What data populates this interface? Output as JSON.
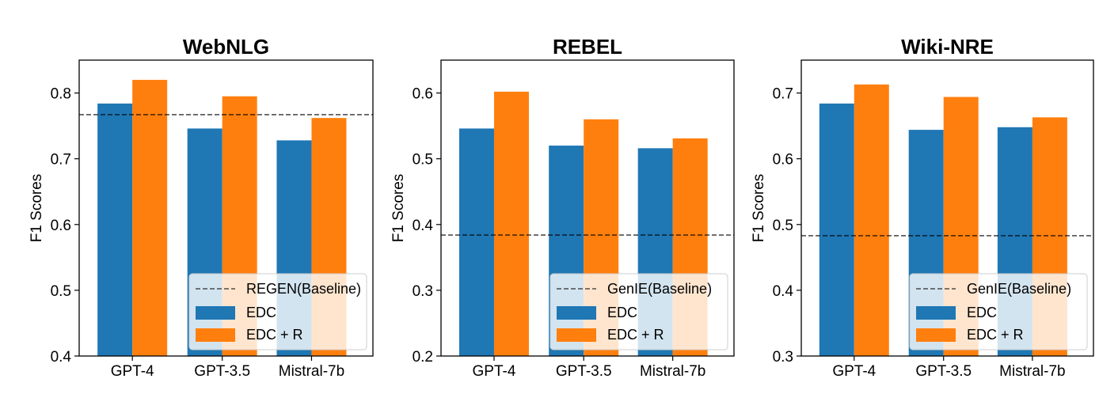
{
  "figure": {
    "colors": {
      "EDC": "#1f77b4",
      "EDC + R": "#ff7f0e",
      "baseline": "#000000"
    }
  },
  "chart_data": [
    {
      "type": "bar",
      "title": "WebNLG",
      "ylabel": "",
      "categories": [
        "GPT-4",
        "GPT-3.5",
        "Mistral-7b"
      ],
      "series": [
        {
          "name": "EDC",
          "values": [
            0.784,
            0.746,
            0.728
          ]
        },
        {
          "name": "EDC + R",
          "values": [
            0.82,
            0.795,
            0.762
          ]
        }
      ],
      "baseline": {
        "name": "REGEN(Baseline)",
        "value": 0.767,
        "style": "dashed"
      },
      "ylim": [
        0.4,
        0.85
      ],
      "yticks": [
        "0.4",
        "0.5",
        "0.6",
        "0.7",
        "0.8"
      ],
      "legend": [
        "REGEN(Baseline)",
        "EDC",
        "EDC + R"
      ],
      "legend_position": "lower-right",
      "grid": false
    },
    {
      "type": "bar",
      "title": "REBEL",
      "ylabel": "F1 Scores",
      "categories": [
        "GPT-4",
        "GPT-3.5",
        "Mistral-7b"
      ],
      "series": [
        {
          "name": "EDC",
          "values": [
            0.546,
            0.52,
            0.516
          ]
        },
        {
          "name": "EDC + R",
          "values": [
            0.602,
            0.56,
            0.531
          ]
        }
      ],
      "baseline": {
        "name": "GenIE(Baseline)",
        "value": 0.384,
        "style": "dashed"
      },
      "ylim": [
        0.2,
        0.65
      ],
      "yticks": [
        "0.2",
        "0.3",
        "0.4",
        "0.5",
        "0.6"
      ],
      "legend": [
        "GenIE(Baseline)",
        "EDC",
        "EDC + R"
      ],
      "legend_position": "lower-right",
      "grid": false
    },
    {
      "type": "bar",
      "title": "Wiki-NRE",
      "ylabel": "F1 Scores",
      "categories": [
        "GPT-4",
        "GPT-3.5",
        "Mistral-7b"
      ],
      "series": [
        {
          "name": "EDC",
          "values": [
            0.684,
            0.644,
            0.648
          ]
        },
        {
          "name": "EDC + R",
          "values": [
            0.713,
            0.694,
            0.663
          ]
        }
      ],
      "baseline": {
        "name": "GenIE(Baseline)",
        "value": 0.483,
        "style": "dashed"
      },
      "ylim": [
        0.3,
        0.75
      ],
      "yticks": [
        "0.3",
        "0.4",
        "0.5",
        "0.6",
        "0.7"
      ],
      "legend": [
        "GenIE(Baseline)",
        "EDC",
        "EDC + R"
      ],
      "legend_position": "lower-right",
      "grid": false
    }
  ]
}
